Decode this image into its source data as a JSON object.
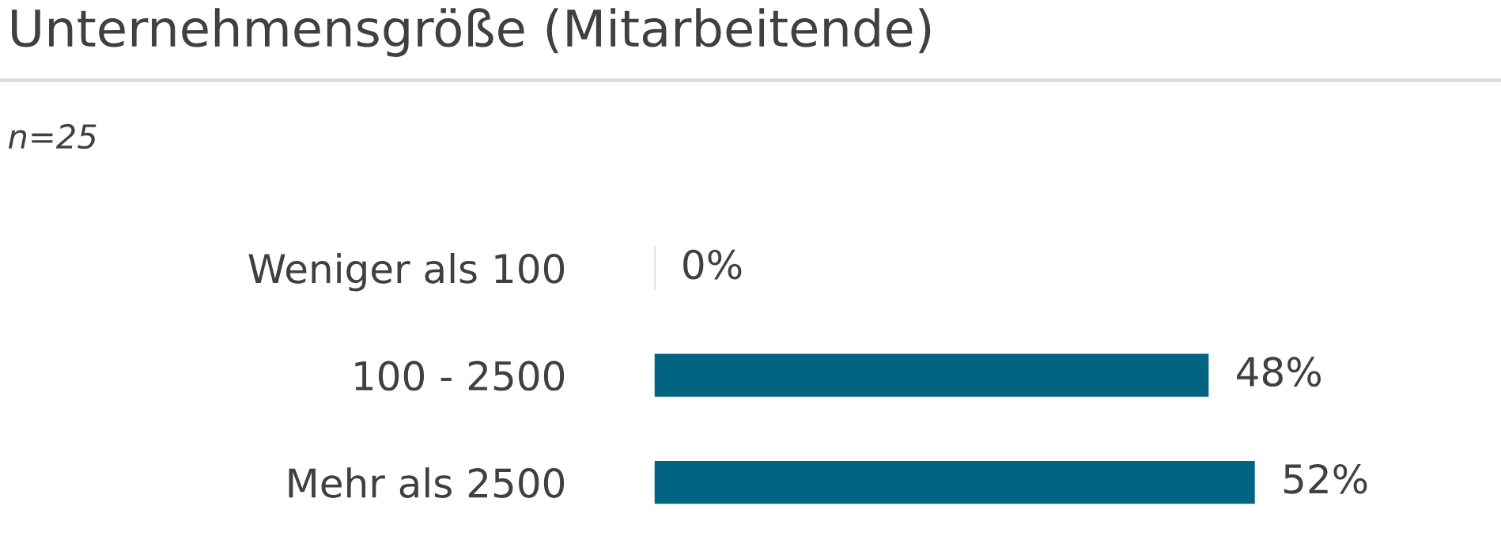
{
  "chart_data": {
    "type": "bar",
    "orientation": "horizontal",
    "title": "Unternehmensgröße (Mitarbeitende)",
    "subtitle": "n=25",
    "categories": [
      "Weniger als 100",
      "100 - 2500",
      "Mehr als 2500"
    ],
    "values": [
      0,
      48,
      52
    ],
    "value_labels": [
      "0%",
      "48%",
      "52%"
    ],
    "color": "#006482",
    "grid": false,
    "legend": false,
    "tick_labels": "y"
  }
}
